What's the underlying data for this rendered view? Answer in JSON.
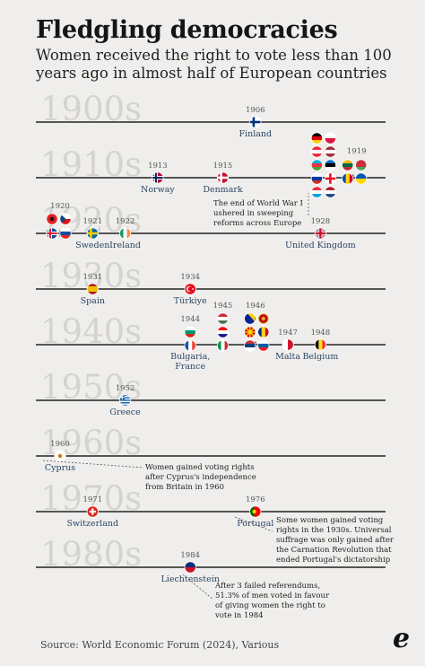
{
  "title": "Fledgling democracies",
  "subtitle": "Women received the right to vote less than 100 years ago in almost half of European countries",
  "source": "Source: World Economic Forum (2024), Various",
  "logo": "e",
  "colors": {
    "background": "#efeeec",
    "axis": "#222222",
    "decade_text": "#d4d3d0",
    "label": "#2b4664",
    "year": "#555555"
  },
  "chart_data": {
    "type": "timeline",
    "title": "Fledgling democracies",
    "subtitle": "Women received the right to vote less than 100 years ago in almost half of European countries",
    "decades": [
      "1900s",
      "1910s",
      "1920s",
      "1930s",
      "1940s",
      "1950s",
      "1960s",
      "1970s",
      "1980s"
    ],
    "events": [
      {
        "year": 1906,
        "decade": "1900s",
        "year_label": "1906",
        "label": "Finland",
        "flags": [
          "finland"
        ]
      },
      {
        "year": 1913,
        "decade": "1910s",
        "year_label": "1913",
        "label": "Norway",
        "flags": [
          "norway"
        ]
      },
      {
        "year": 1915,
        "decade": "1910s",
        "year_label": "1915",
        "label": "Denmark",
        "flags": [
          "denmark"
        ]
      },
      {
        "year": 1918,
        "decade": "1910s",
        "year_label": "",
        "label": "",
        "flags": [
          "germany",
          "poland",
          "austria",
          "latvia",
          "azerbaijan",
          "estonia",
          "russia",
          "georgia",
          "luxembourg",
          "netherlands"
        ]
      },
      {
        "year": 1919,
        "decade": "1910s",
        "year_label": "1919",
        "label": "",
        "flags": [
          "lithuania",
          "belarus",
          "moldova",
          "ukraine"
        ]
      },
      {
        "year": 1920,
        "decade": "1920s",
        "year_label": "1920",
        "label": "",
        "flags": [
          "albania",
          "czechia",
          "iceland",
          "slovakia"
        ]
      },
      {
        "year": 1921,
        "decade": "1920s",
        "year_label": "1921",
        "label": "Sweden",
        "flags": [
          "sweden"
        ]
      },
      {
        "year": 1922,
        "decade": "1920s",
        "year_label": "1922",
        "label": "Ireland",
        "flags": [
          "ireland"
        ]
      },
      {
        "year": 1928,
        "decade": "1920s",
        "year_label": "1928",
        "label": "United Kingdom",
        "flags": [
          "united-kingdom"
        ]
      },
      {
        "year": 1931,
        "decade": "1930s",
        "year_label": "1931",
        "label": "Spain",
        "flags": [
          "spain"
        ]
      },
      {
        "year": 1934,
        "decade": "1930s",
        "year_label": "1934",
        "label": "Türkiye",
        "flags": [
          "turkiye"
        ]
      },
      {
        "year": 1944,
        "decade": "1940s",
        "year_label": "1944",
        "label": "Bulgaria, France",
        "flags": [
          "bulgaria",
          "france"
        ]
      },
      {
        "year": 1945,
        "decade": "1940s",
        "year_label": "1945",
        "label": "",
        "flags": [
          "hungary",
          "croatia",
          "italy"
        ]
      },
      {
        "year": 1946,
        "decade": "1940s",
        "year_label": "1946",
        "label": "",
        "flags": [
          "bosnia",
          "montenegro",
          "north-macedonia",
          "romania",
          "serbia",
          "slovenia"
        ]
      },
      {
        "year": 1947,
        "decade": "1940s",
        "year_label": "1947",
        "label": "Malta",
        "flags": [
          "malta"
        ]
      },
      {
        "year": 1948,
        "decade": "1940s",
        "year_label": "1948",
        "label": "Belgium",
        "flags": [
          "belgium"
        ]
      },
      {
        "year": 1952,
        "decade": "1950s",
        "year_label": "1952",
        "label": "Greece",
        "flags": [
          "greece"
        ]
      },
      {
        "year": 1960,
        "decade": "1960s",
        "year_label": "1960",
        "label": "Cyprus",
        "flags": [
          "cyprus"
        ]
      },
      {
        "year": 1971,
        "decade": "1970s",
        "year_label": "1971",
        "label": "Switzerland",
        "flags": [
          "switzerland"
        ]
      },
      {
        "year": 1976,
        "decade": "1970s",
        "year_label": "1976",
        "label": "Portugal",
        "flags": [
          "portugal"
        ]
      },
      {
        "year": 1984,
        "decade": "1980s",
        "year_label": "1984",
        "label": "Liechtenstein",
        "flags": [
          "liechtenstein"
        ]
      }
    ],
    "annotations": [
      {
        "decade": "1910s",
        "lines": [
          "The end of World War I",
          "ushered in sweeping",
          "reforms across Europe"
        ]
      },
      {
        "decade": "1960s",
        "lines": [
          "Women gained voting rights",
          "after Cyprus's independence",
          "from Britain in 1960"
        ]
      },
      {
        "decade": "1970s",
        "lines": [
          "Some women gained voting",
          "rights in the 1930s. Universal",
          "suffrage was only gained after",
          "the Carnation Revolution that",
          "ended Portugal's dictatorship"
        ]
      },
      {
        "decade": "1980s",
        "lines": [
          "After 3 failed referendums,",
          "51.3% of men voted in favour",
          "of giving women the right to",
          "vote in 1984"
        ]
      }
    ]
  }
}
